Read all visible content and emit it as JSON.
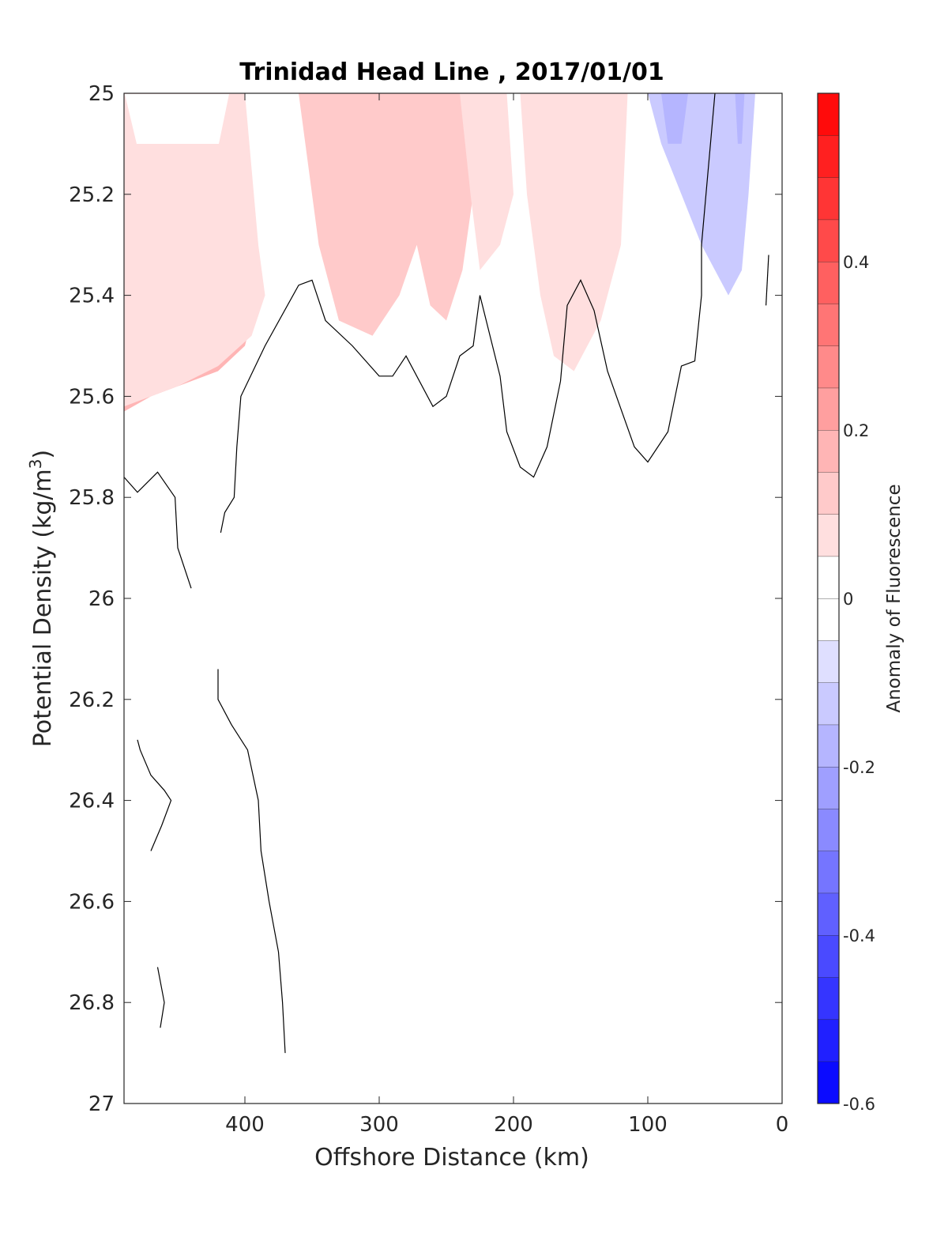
{
  "chart_data": {
    "type": "contour",
    "title": "Trinidad Head Line , 2017/01/01",
    "xlabel": "Offshore Distance (km)",
    "ylabel": "Potential Density (kg/m",
    "ylabel_sup": "3",
    "ylabel_close": ")",
    "xlim": [
      490,
      0
    ],
    "ylim": [
      25,
      27
    ],
    "x_reversed": true,
    "y_reversed": true,
    "xticks": [
      400,
      300,
      200,
      100,
      0
    ],
    "xtick_labels": [
      "400",
      "300",
      "200",
      "100",
      "0"
    ],
    "yticks": [
      25,
      25.2,
      25.4,
      25.6,
      25.8,
      26,
      26.2,
      26.4,
      26.6,
      26.8,
      27
    ],
    "ytick_labels": [
      "25",
      "25.2",
      "25.4",
      "25.6",
      "25.8",
      "26",
      "26.2",
      "26.4",
      "26.6",
      "26.8",
      "27"
    ],
    "colorbar": {
      "label": "Anomaly of Fluorescence",
      "range": [
        -0.6,
        0.6
      ],
      "levels": 24,
      "ticks": [
        -0.6,
        -0.4,
        -0.2,
        0,
        0.2,
        0.4
      ],
      "tick_labels": [
        "-0.6",
        "-0.4",
        "-0.2",
        "0",
        "0.2",
        "0.4"
      ]
    },
    "zero_contour_lines": [
      [
        [
          490,
          25.76
        ],
        [
          480,
          25.79
        ],
        [
          465,
          25.75
        ],
        [
          452,
          25.8
        ],
        [
          450,
          25.9
        ],
        [
          440,
          25.98
        ]
      ],
      [
        [
          418,
          25.87
        ],
        [
          415,
          25.83
        ],
        [
          408,
          25.8
        ],
        [
          406,
          25.7
        ],
        [
          403,
          25.6
        ],
        [
          385,
          25.5
        ],
        [
          360,
          25.38
        ],
        [
          350,
          25.37
        ],
        [
          340,
          25.45
        ],
        [
          320,
          25.5
        ],
        [
          300,
          25.56
        ],
        [
          290,
          25.56
        ],
        [
          280,
          25.52
        ],
        [
          260,
          25.62
        ],
        [
          250,
          25.6
        ],
        [
          240,
          25.52
        ],
        [
          230,
          25.5
        ],
        [
          225,
          25.4
        ],
        [
          210,
          25.56
        ],
        [
          205,
          25.67
        ],
        [
          195,
          25.74
        ],
        [
          185,
          25.76
        ],
        [
          175,
          25.7
        ],
        [
          165,
          25.57
        ],
        [
          160,
          25.42
        ],
        [
          150,
          25.37
        ],
        [
          140,
          25.43
        ],
        [
          130,
          25.55
        ],
        [
          110,
          25.7
        ],
        [
          100,
          25.73
        ],
        [
          85,
          25.67
        ],
        [
          75,
          25.54
        ],
        [
          65,
          25.53
        ],
        [
          60,
          25.4
        ],
        [
          60,
          25.3
        ],
        [
          55,
          25.15
        ],
        [
          50,
          25.0
        ]
      ],
      [
        [
          12,
          25.42
        ],
        [
          10,
          25.32
        ]
      ],
      [
        [
          420,
          26.14
        ],
        [
          420,
          26.2
        ],
        [
          410,
          26.25
        ],
        [
          398,
          26.3
        ],
        [
          390,
          26.4
        ],
        [
          388,
          26.5
        ],
        [
          382,
          26.6
        ],
        [
          375,
          26.7
        ],
        [
          372,
          26.8
        ],
        [
          370,
          26.9
        ]
      ],
      [
        [
          480,
          26.28
        ],
        [
          478,
          26.3
        ],
        [
          470,
          26.35
        ],
        [
          460,
          26.38
        ],
        [
          455,
          26.4
        ],
        [
          462,
          26.45
        ],
        [
          470,
          26.5
        ]
      ],
      [
        [
          465,
          26.73
        ],
        [
          460,
          26.8
        ],
        [
          463,
          26.85
        ]
      ]
    ],
    "regions": [
      {
        "level": 0.55,
        "points": [
          [
            490,
            25.0
          ],
          [
            480,
            25.0
          ],
          [
            478,
            25.1
          ],
          [
            475,
            25.2
          ],
          [
            470,
            25.3
          ],
          [
            468,
            25.36
          ],
          [
            475,
            25.42
          ],
          [
            482,
            25.45
          ],
          [
            490,
            25.47
          ]
        ]
      },
      {
        "level": 0.35,
        "points": [
          [
            490,
            25.0
          ],
          [
            470,
            25.0
          ],
          [
            460,
            25.1
          ],
          [
            455,
            25.2
          ],
          [
            445,
            25.3
          ],
          [
            440,
            25.38
          ],
          [
            450,
            25.45
          ],
          [
            470,
            25.52
          ],
          [
            490,
            25.56
          ]
        ]
      },
      {
        "level": 0.15,
        "points": [
          [
            490,
            25.0
          ],
          [
            410,
            25.0
          ],
          [
            405,
            25.1
          ],
          [
            400,
            25.2
          ],
          [
            395,
            25.3
          ],
          [
            390,
            25.4
          ],
          [
            400,
            25.5
          ],
          [
            420,
            25.55
          ],
          [
            450,
            25.58
          ],
          [
            470,
            25.6
          ],
          [
            490,
            25.63
          ]
        ]
      },
      {
        "level": 0.05,
        "points": [
          [
            490,
            25.0
          ],
          [
            400,
            25.0
          ],
          [
            395,
            25.15
          ],
          [
            390,
            25.3
          ],
          [
            385,
            25.4
          ],
          [
            395,
            25.48
          ],
          [
            420,
            25.54
          ],
          [
            450,
            25.58
          ],
          [
            490,
            25.62
          ]
        ]
      },
      {
        "level": 0.5,
        "points": [
          [
            330,
            25.0
          ],
          [
            300,
            25.0
          ],
          [
            305,
            25.1
          ],
          [
            312,
            25.2
          ],
          [
            320,
            25.25
          ],
          [
            328,
            25.1
          ]
        ]
      },
      {
        "level": 0.5,
        "points": [
          [
            260,
            25.0
          ],
          [
            242,
            25.0
          ],
          [
            245,
            25.1
          ],
          [
            252,
            25.1
          ]
        ]
      },
      {
        "level": 0.3,
        "points": [
          [
            350,
            25.0
          ],
          [
            230,
            25.0
          ],
          [
            240,
            25.2
          ],
          [
            250,
            25.3
          ],
          [
            260,
            25.3
          ],
          [
            275,
            25.2
          ],
          [
            290,
            25.3
          ],
          [
            310,
            25.35
          ],
          [
            330,
            25.3
          ],
          [
            345,
            25.15
          ]
        ]
      },
      {
        "level": 0.1,
        "points": [
          [
            360,
            25.0
          ],
          [
            225,
            25.0
          ],
          [
            230,
            25.2
          ],
          [
            238,
            25.35
          ],
          [
            250,
            25.45
          ],
          [
            262,
            25.42
          ],
          [
            272,
            25.3
          ],
          [
            285,
            25.4
          ],
          [
            305,
            25.48
          ],
          [
            330,
            25.45
          ],
          [
            345,
            25.3
          ],
          [
            355,
            25.1
          ]
        ]
      },
      {
        "level": 0.05,
        "points": [
          [
            240,
            25.0
          ],
          [
            205,
            25.0
          ],
          [
            200,
            25.2
          ],
          [
            210,
            25.3
          ],
          [
            225,
            25.35
          ],
          [
            232,
            25.2
          ]
        ]
      },
      {
        "level": 0.15,
        "points": [
          [
            190,
            25.0
          ],
          [
            120,
            25.0
          ],
          [
            122,
            25.2
          ],
          [
            128,
            25.3
          ],
          [
            140,
            25.35
          ],
          [
            155,
            25.4
          ],
          [
            165,
            25.5
          ],
          [
            172,
            25.4
          ],
          [
            180,
            25.3
          ],
          [
            185,
            25.15
          ]
        ]
      },
      {
        "level": 0.05,
        "points": [
          [
            195,
            25.0
          ],
          [
            115,
            25.0
          ],
          [
            120,
            25.3
          ],
          [
            135,
            25.45
          ],
          [
            155,
            25.55
          ],
          [
            170,
            25.52
          ],
          [
            180,
            25.4
          ],
          [
            190,
            25.2
          ]
        ]
      },
      {
        "level": -0.05,
        "points": [
          [
            112,
            25.0
          ],
          [
            12,
            25.0
          ],
          [
            15,
            25.3
          ],
          [
            20,
            25.6
          ],
          [
            25,
            25.8
          ],
          [
            30,
            26.0
          ],
          [
            30,
            26.2
          ],
          [
            40,
            26.3
          ],
          [
            50,
            26.35
          ],
          [
            70,
            26.3
          ],
          [
            80,
            26.2
          ],
          [
            85,
            26.0
          ],
          [
            100,
            25.9
          ],
          [
            115,
            25.8
          ],
          [
            110,
            25.7
          ],
          [
            105,
            25.5
          ],
          [
            110,
            25.3
          ]
        ]
      },
      {
        "level": -0.12,
        "points": [
          [
            100,
            25.0
          ],
          [
            20,
            25.0
          ],
          [
            25,
            25.2
          ],
          [
            30,
            25.35
          ],
          [
            40,
            25.4
          ],
          [
            50,
            25.35
          ],
          [
            60,
            25.3
          ],
          [
            75,
            25.2
          ],
          [
            90,
            25.1
          ]
        ]
      },
      {
        "level": -0.2,
        "points": [
          [
            90,
            25.0
          ],
          [
            70,
            25.0
          ],
          [
            75,
            25.1
          ],
          [
            85,
            25.1
          ]
        ]
      },
      {
        "level": -0.2,
        "points": [
          [
            35,
            25.0
          ],
          [
            28,
            25.0
          ],
          [
            30,
            25.1
          ],
          [
            33,
            25.1
          ]
        ]
      },
      {
        "level": -0.05,
        "points": [
          [
            400,
            25.6
          ],
          [
            385,
            25.58
          ],
          [
            375,
            25.7
          ],
          [
            360,
            25.9
          ],
          [
            370,
            26.0
          ],
          [
            395,
            26.1
          ],
          [
            395,
            26.3
          ],
          [
            405,
            26.5
          ],
          [
            395,
            26.7
          ],
          [
            390,
            26.9
          ],
          [
            355,
            26.9
          ],
          [
            360,
            26.7
          ],
          [
            370,
            26.5
          ],
          [
            365,
            26.35
          ],
          [
            350,
            26.2
          ],
          [
            345,
            26.05
          ],
          [
            340,
            25.95
          ]
        ]
      },
      {
        "level": -0.05,
        "points": [
          [
            320,
            26.05
          ],
          [
            310,
            26.0
          ],
          [
            305,
            26.02
          ],
          [
            312,
            26.08
          ]
        ]
      },
      {
        "level": -0.05,
        "points": [
          [
            275,
            25.7
          ],
          [
            265,
            25.75
          ],
          [
            260,
            25.85
          ],
          [
            255,
            26.0
          ],
          [
            250,
            26.05
          ],
          [
            230,
            26.1
          ],
          [
            205,
            26.05
          ],
          [
            200,
            26.2
          ],
          [
            195,
            26.4
          ],
          [
            195,
            26.6
          ],
          [
            190,
            26.8
          ],
          [
            185,
            26.9
          ],
          [
            250,
            26.9
          ],
          [
            260,
            26.7
          ],
          [
            270,
            26.6
          ],
          [
            290,
            26.5
          ],
          [
            300,
            26.4
          ],
          [
            320,
            26.3
          ],
          [
            330,
            26.35
          ],
          [
            345,
            26.3
          ],
          [
            355,
            26.2
          ],
          [
            340,
            26.1
          ],
          [
            330,
            26.0
          ],
          [
            310,
            25.9
          ],
          [
            290,
            25.85
          ],
          [
            280,
            25.8
          ]
        ]
      },
      {
        "level": -0.05,
        "points": [
          [
            160,
            25.8
          ],
          [
            140,
            25.7
          ],
          [
            130,
            25.75
          ],
          [
            120,
            25.8
          ],
          [
            140,
            25.95
          ],
          [
            165,
            26.0
          ],
          [
            180,
            26.05
          ],
          [
            170,
            26.15
          ],
          [
            150,
            26.1
          ],
          [
            140,
            26.2
          ],
          [
            130,
            26.3
          ],
          [
            120,
            26.4
          ],
          [
            110,
            26.6
          ],
          [
            100,
            26.75
          ],
          [
            80,
            26.8
          ],
          [
            75,
            26.7
          ],
          [
            60,
            26.6
          ],
          [
            55,
            26.45
          ],
          [
            50,
            26.5
          ],
          [
            40,
            26.55
          ],
          [
            30,
            26.7
          ],
          [
            20,
            26.85
          ],
          [
            25,
            26.9
          ],
          [
            45,
            26.9
          ],
          [
            55,
            26.8
          ],
          [
            70,
            26.85
          ],
          [
            80,
            26.9
          ],
          [
            110,
            26.85
          ],
          [
            140,
            26.7
          ],
          [
            160,
            26.65
          ],
          [
            180,
            26.55
          ],
          [
            185,
            26.45
          ],
          [
            175,
            26.4
          ],
          [
            160,
            26.35
          ],
          [
            150,
            26.25
          ],
          [
            155,
            26.15
          ],
          [
            165,
            26.05
          ],
          [
            175,
            25.9
          ]
        ]
      },
      {
        "level": -0.05,
        "points": [
          [
            370,
            26.6
          ],
          [
            355,
            26.55
          ],
          [
            350,
            26.65
          ],
          [
            360,
            26.7
          ]
        ]
      },
      {
        "level": -0.05,
        "points": [
          [
            310,
            26.7
          ],
          [
            295,
            26.6
          ],
          [
            285,
            26.75
          ],
          [
            300,
            26.8
          ]
        ]
      }
    ]
  }
}
